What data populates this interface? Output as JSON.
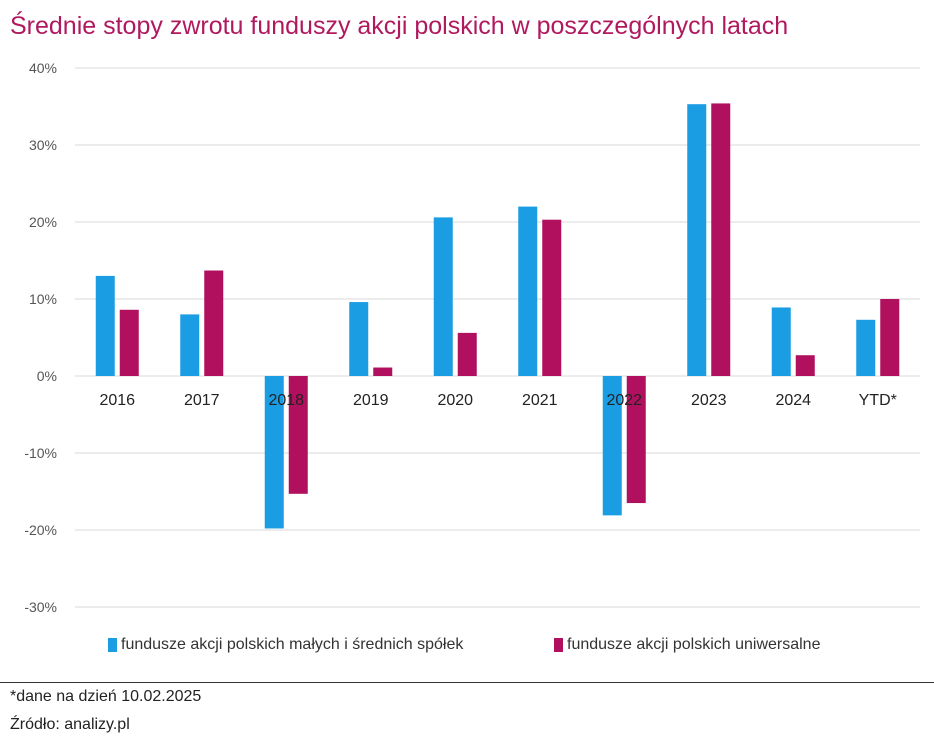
{
  "title": "Średnie stopy zwrotu funduszy akcji polskich w poszczególnych latach",
  "note": "*dane na dzień 10.02.2025",
  "source": "Źródło: analizy.pl",
  "colors": {
    "series_1": "#1a9de2",
    "series_2": "#b0105e",
    "grid": "#e6e6e6",
    "title": "#b0195e"
  },
  "chart_data": {
    "type": "bar",
    "title": "Średnie stopy zwrotu funduszy akcji polskich w poszczególnych latach",
    "categories": [
      "2016",
      "2017",
      "2018",
      "2019",
      "2020",
      "2021",
      "2022",
      "2023",
      "2024",
      "YTD*"
    ],
    "series": [
      {
        "name": "fundusze akcji polskich małych i średnich spółek",
        "values": [
          13.0,
          8.0,
          -19.8,
          9.6,
          20.6,
          22.0,
          -18.1,
          35.3,
          8.9,
          7.3
        ]
      },
      {
        "name": "fundusze akcji polskich uniwersalne",
        "values": [
          8.6,
          13.7,
          -15.3,
          1.1,
          5.6,
          20.3,
          -16.5,
          35.4,
          2.7,
          10.0
        ]
      }
    ],
    "ylim": [
      -30,
      40
    ],
    "yticks": [
      40,
      30,
      20,
      10,
      0,
      -10,
      -20,
      -30
    ],
    "ytick_labels": [
      "40%",
      "30%",
      "20%",
      "10%",
      "0%",
      "-10%",
      "-20%",
      "-30%"
    ],
    "xlabel": "",
    "ylabel": "",
    "grid": true,
    "legend_position": "bottom"
  }
}
